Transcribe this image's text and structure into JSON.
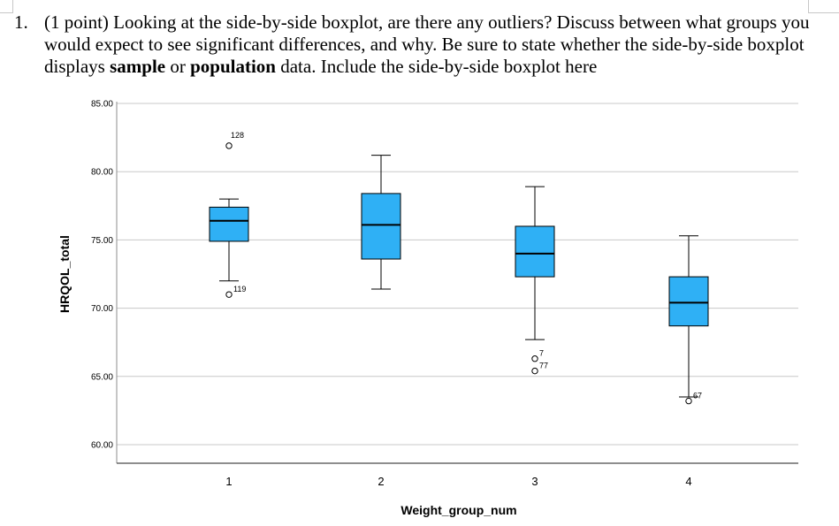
{
  "question": {
    "number": "1.",
    "text_part1": "(1 point) Looking at the side-by-side boxplot, are there any outliers? Discuss between what groups you would expect to see significant differences, and why. Be sure to state whether the side-by-side boxplot displays ",
    "bold_sample": "sample",
    "text_or": " or ",
    "bold_population": "population",
    "text_part2": " data. Include the side-by-side boxplot here"
  },
  "colors": {
    "box_fill": "#2fb0f5",
    "grid": "#c8c8c8",
    "axis": "#000000",
    "text": "#000000"
  },
  "chart_data": {
    "type": "boxplot",
    "xlabel": "Weight_group_num",
    "ylabel": "HRQOL_total",
    "ylim": [
      60,
      85
    ],
    "yticks": [
      60,
      65,
      70,
      75,
      80,
      85
    ],
    "ytick_labels": [
      "60.00",
      "65.00",
      "70.00",
      "75.00",
      "80.00",
      "85.00"
    ],
    "categories": [
      "1",
      "2",
      "3",
      "4"
    ],
    "grid": true,
    "boxes": [
      {
        "category": "1",
        "whisker_low": 72.0,
        "q1": 74.9,
        "median": 76.4,
        "q3": 77.4,
        "whisker_high": 78.0,
        "outliers": [
          {
            "value": 81.9,
            "label": "128"
          },
          {
            "value": 71.0,
            "label": "119"
          }
        ]
      },
      {
        "category": "2",
        "whisker_low": 71.4,
        "q1": 73.6,
        "median": 76.1,
        "q3": 78.4,
        "whisker_high": 81.2,
        "outliers": []
      },
      {
        "category": "3",
        "whisker_low": 67.7,
        "q1": 72.3,
        "median": 74.0,
        "q3": 76.0,
        "whisker_high": 78.9,
        "outliers": [
          {
            "value": 66.3,
            "label": "7"
          },
          {
            "value": 65.4,
            "label": "77"
          }
        ]
      },
      {
        "category": "4",
        "whisker_low": 63.5,
        "q1": 68.7,
        "median": 70.4,
        "q3": 72.3,
        "whisker_high": 75.3,
        "outliers": [
          {
            "value": 63.2,
            "label": "67"
          }
        ]
      }
    ]
  }
}
